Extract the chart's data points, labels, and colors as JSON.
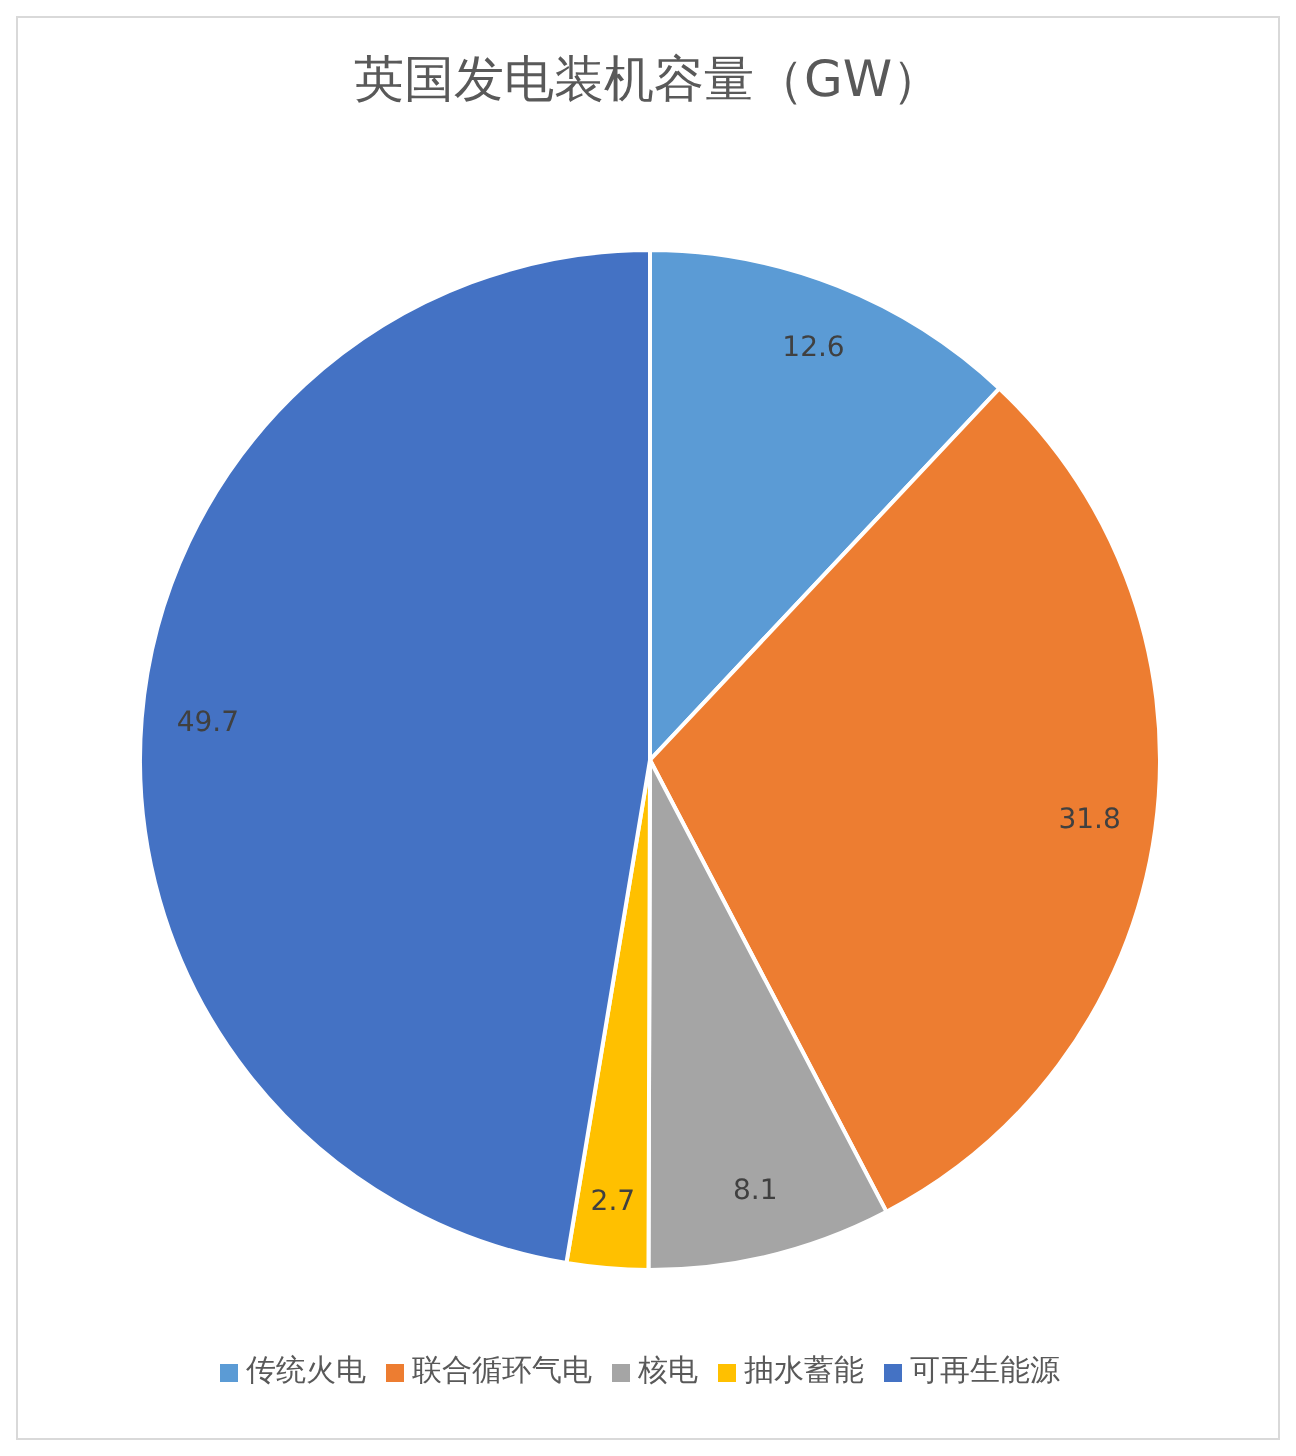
{
  "chart_data": {
    "type": "pie",
    "title": "英国发电装机容量（GW）",
    "categories": [
      "传统火电",
      "联合循环气电",
      "核电",
      "抽水蓄能",
      "可再生能源"
    ],
    "values": [
      12.6,
      31.8,
      8.1,
      2.7,
      49.7
    ],
    "colors": [
      "#5b9bd5",
      "#ed7d31",
      "#a5a5a5",
      "#ffc000",
      "#4472c4"
    ],
    "data_labels": true,
    "legend": "bottom"
  }
}
